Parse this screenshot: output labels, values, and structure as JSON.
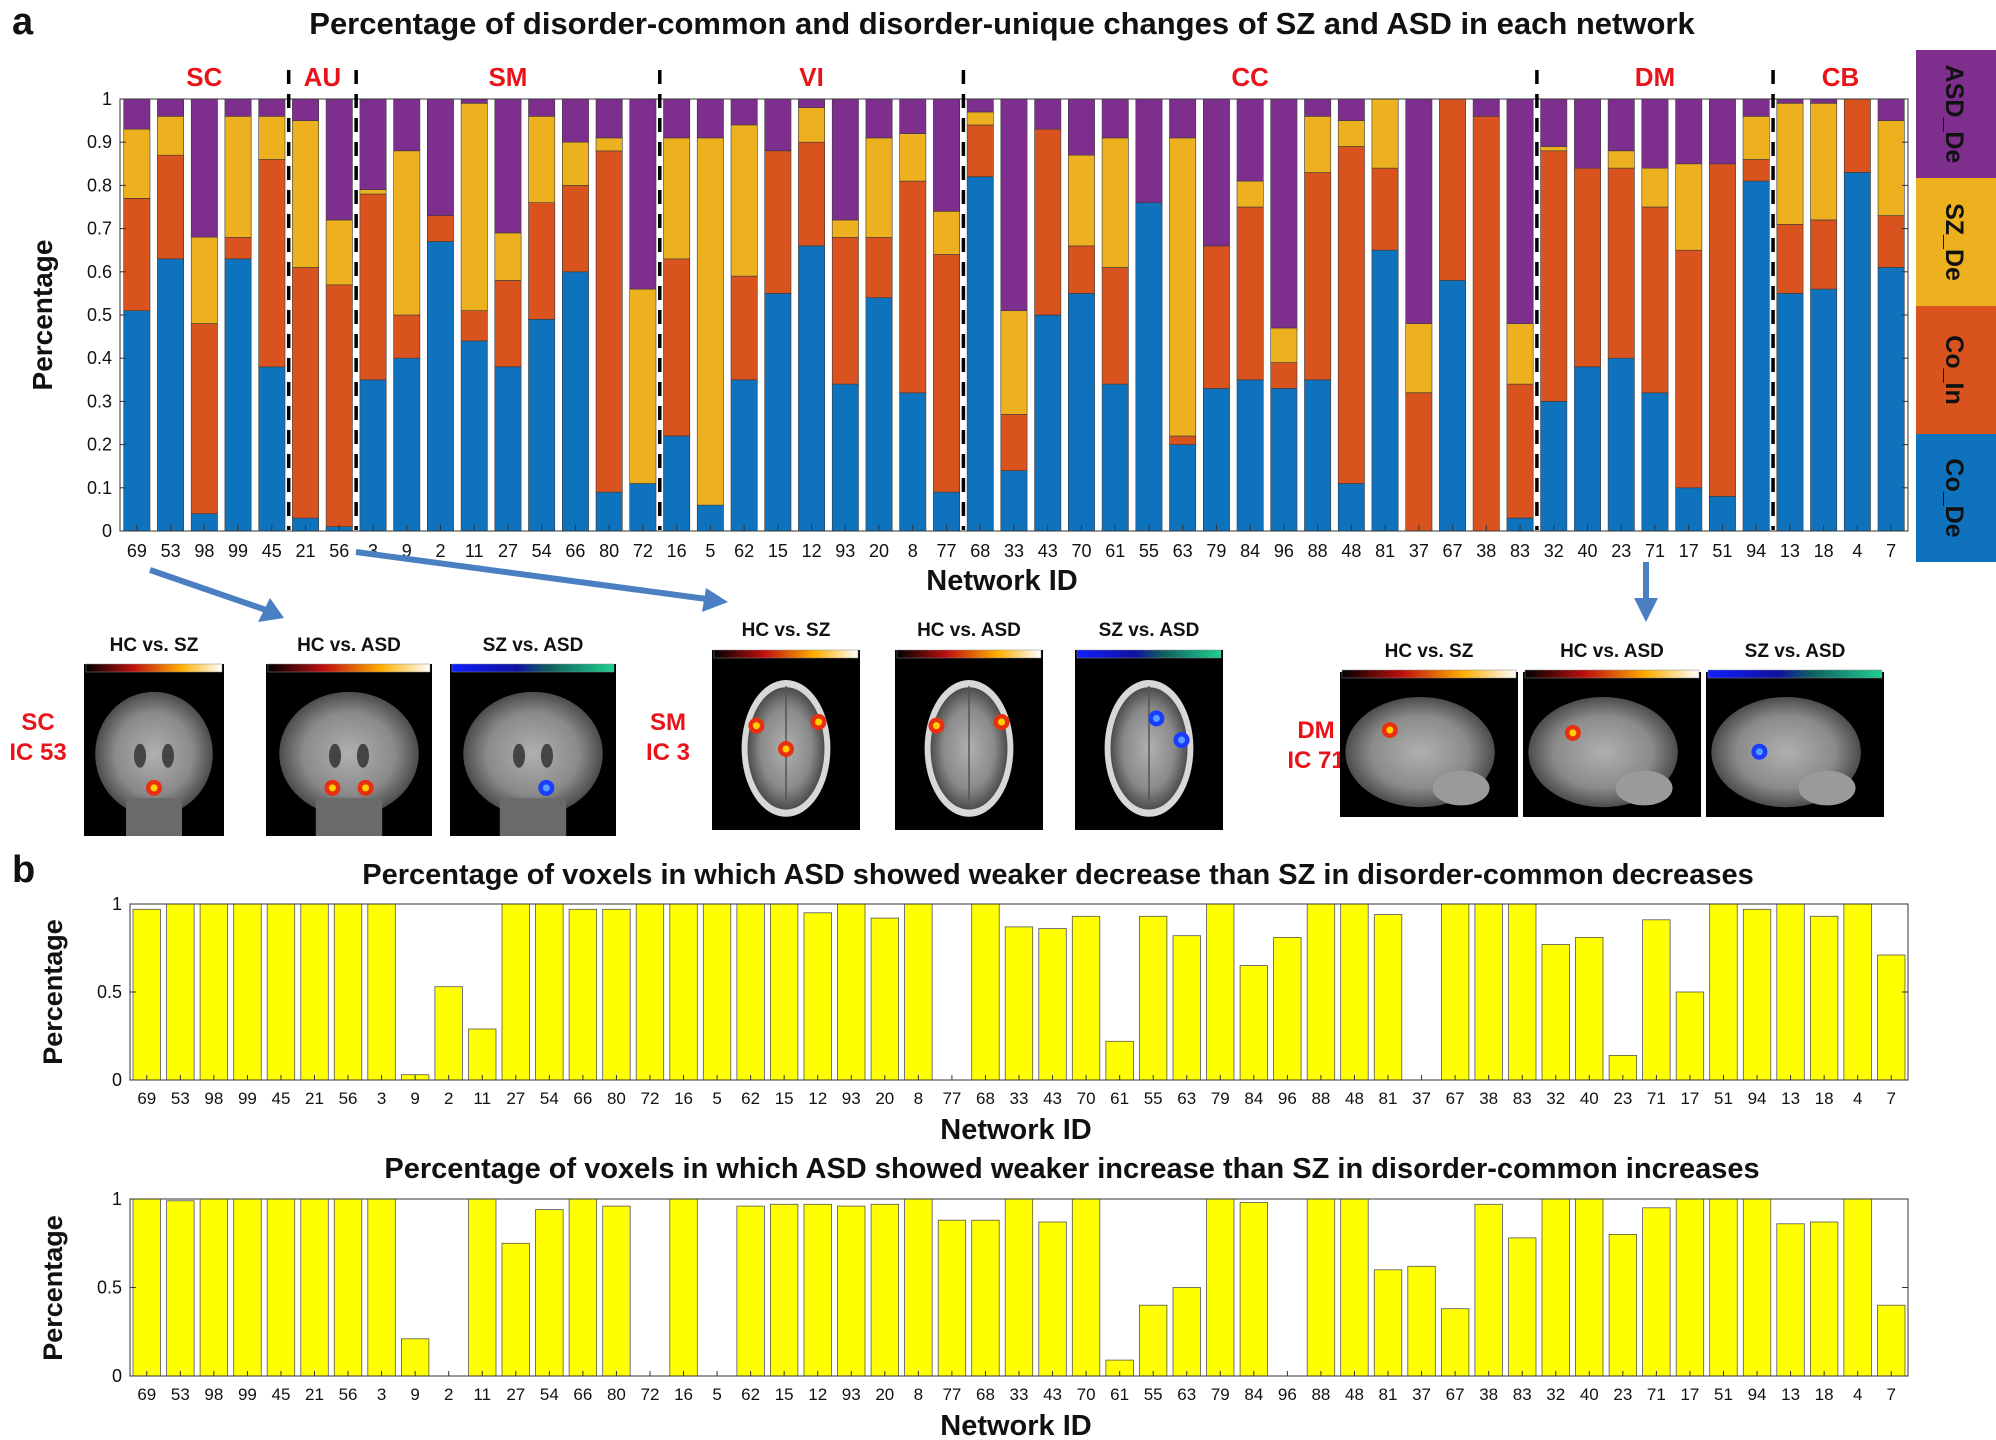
{
  "panel_labels": {
    "a": "a",
    "b": "b"
  },
  "colors": {
    "co_de": "#0f72bd",
    "co_in": "#d9531e",
    "sz_de": "#edb120",
    "asd_de": "#7e2f8e",
    "network_label": "#e8141a",
    "bar_b": "#ffff00",
    "arrow": "#4a7fc1"
  },
  "icons": {
    "arrow": "arrow-icon"
  },
  "chart_data": [
    {
      "id": "a",
      "type": "bar",
      "stacked": true,
      "title": "Percentage of disorder-common and disorder-unique changes of SZ and ASD in each network",
      "xlabel": "Network ID",
      "ylabel": "Percentage",
      "ylim": [
        0,
        1
      ],
      "yticks": [
        "0",
        "0.1",
        "0.2",
        "0.3",
        "0.4",
        "0.5",
        "0.6",
        "0.7",
        "0.8",
        "0.9",
        "1"
      ],
      "categories": [
        "69",
        "53",
        "98",
        "99",
        "45",
        "21",
        "56",
        "3",
        "9",
        "2",
        "11",
        "27",
        "54",
        "66",
        "80",
        "72",
        "16",
        "5",
        "62",
        "15",
        "12",
        "93",
        "20",
        "8",
        "77",
        "68",
        "33",
        "43",
        "70",
        "61",
        "55",
        "63",
        "79",
        "84",
        "96",
        "88",
        "48",
        "81",
        "37",
        "67",
        "38",
        "83",
        "32",
        "40",
        "23",
        "71",
        "17",
        "51",
        "94",
        "13",
        "18",
        "4",
        "7"
      ],
      "series": [
        {
          "name": "Co_De",
          "values": [
            0.51,
            0.63,
            0.04,
            0.63,
            0.38,
            0.03,
            0.01,
            0.35,
            0.4,
            0.67,
            0.44,
            0.38,
            0.49,
            0.6,
            0.09,
            0.11,
            0.22,
            0.06,
            0.35,
            0.55,
            0.66,
            0.34,
            0.54,
            0.32,
            0.09,
            0.82,
            0.14,
            0.5,
            0.55,
            0.34,
            0.76,
            0.2,
            0.33,
            0.35,
            0.33,
            0.35,
            0.11,
            0.65,
            0.0,
            0.58,
            0.0,
            0.03,
            0.3,
            0.38,
            0.4,
            0.32,
            0.1,
            0.08,
            0.81,
            0.55,
            0.56,
            0.83,
            0.61
          ]
        },
        {
          "name": "Co_In",
          "values": [
            0.26,
            0.24,
            0.44,
            0.05,
            0.48,
            0.58,
            0.56,
            0.43,
            0.1,
            0.06,
            0.07,
            0.2,
            0.27,
            0.2,
            0.79,
            0.0,
            0.41,
            0.0,
            0.24,
            0.33,
            0.24,
            0.34,
            0.14,
            0.49,
            0.55,
            0.12,
            0.13,
            0.43,
            0.11,
            0.27,
            0.0,
            0.02,
            0.33,
            0.4,
            0.06,
            0.48,
            0.78,
            0.19,
            0.32,
            0.42,
            0.96,
            0.31,
            0.58,
            0.46,
            0.44,
            0.43,
            0.55,
            0.77,
            0.05,
            0.16,
            0.16,
            0.17,
            0.12
          ]
        },
        {
          "name": "SZ_De",
          "values": [
            0.16,
            0.09,
            0.2,
            0.28,
            0.1,
            0.34,
            0.15,
            0.01,
            0.38,
            0.0,
            0.48,
            0.11,
            0.2,
            0.1,
            0.03,
            0.45,
            0.28,
            0.85,
            0.35,
            0.0,
            0.08,
            0.04,
            0.23,
            0.11,
            0.1,
            0.03,
            0.24,
            0.0,
            0.21,
            0.3,
            0.0,
            0.69,
            0.0,
            0.06,
            0.08,
            0.13,
            0.06,
            0.16,
            0.16,
            0.0,
            0.0,
            0.14,
            0.01,
            0.0,
            0.04,
            0.09,
            0.2,
            0.0,
            0.1,
            0.28,
            0.27,
            0.0,
            0.22
          ]
        },
        {
          "name": "ASD_De",
          "values": [
            0.07,
            0.04,
            0.32,
            0.04,
            0.04,
            0.05,
            0.28,
            0.21,
            0.12,
            0.27,
            0.01,
            0.31,
            0.04,
            0.1,
            0.09,
            0.44,
            0.09,
            0.09,
            0.06,
            0.12,
            0.02,
            0.28,
            0.09,
            0.08,
            0.26,
            0.03,
            0.49,
            0.07,
            0.13,
            0.09,
            0.24,
            0.09,
            0.34,
            0.19,
            0.53,
            0.04,
            0.05,
            0.0,
            0.52,
            0.0,
            0.04,
            0.52,
            0.11,
            0.16,
            0.12,
            0.16,
            0.15,
            0.15,
            0.04,
            0.01,
            0.01,
            0.0,
            0.05
          ]
        }
      ],
      "legend": [
        "ASD_De",
        "SZ_De",
        "Co_In",
        "Co_De"
      ],
      "legend_position": "right",
      "network_groups": [
        {
          "label": "SC",
          "start": 0,
          "count": 5
        },
        {
          "label": "AU",
          "start": 5,
          "count": 2
        },
        {
          "label": "SM",
          "start": 7,
          "count": 9
        },
        {
          "label": "VI",
          "start": 16,
          "count": 9
        },
        {
          "label": "CC",
          "start": 25,
          "count": 17
        },
        {
          "label": "DM",
          "start": 42,
          "count": 7
        },
        {
          "label": "CB",
          "start": 49,
          "count": 4
        }
      ]
    },
    {
      "id": "b1",
      "type": "bar",
      "title": "Percentage of voxels in which ASD showed weaker decrease than SZ in disorder-common decreases",
      "xlabel": "Network ID",
      "ylabel": "Percentage",
      "ylim": [
        0,
        1
      ],
      "yticks": [
        "0",
        "0.5",
        "1"
      ],
      "categories": [
        "69",
        "53",
        "98",
        "99",
        "45",
        "21",
        "56",
        "3",
        "9",
        "2",
        "11",
        "27",
        "54",
        "66",
        "80",
        "72",
        "16",
        "5",
        "62",
        "15",
        "12",
        "93",
        "20",
        "8",
        "77",
        "68",
        "33",
        "43",
        "70",
        "61",
        "55",
        "63",
        "79",
        "84",
        "96",
        "88",
        "48",
        "81",
        "37",
        "67",
        "38",
        "83",
        "32",
        "40",
        "23",
        "71",
        "17",
        "51",
        "94",
        "13",
        "18",
        "4",
        "7"
      ],
      "values": [
        0.97,
        1,
        1,
        1,
        1,
        1,
        1,
        1,
        0.03,
        0.53,
        0.29,
        1,
        1,
        0.97,
        0.97,
        1,
        1,
        1,
        1,
        1,
        0.95,
        1,
        0.92,
        1,
        0,
        1,
        0.87,
        0.86,
        0.93,
        0.22,
        0.93,
        0.82,
        1,
        0.65,
        0.81,
        1,
        1,
        0.94,
        0,
        1,
        1,
        1,
        0.77,
        0.81,
        0.14,
        0.91,
        0.5,
        1,
        0.97,
        1,
        0.93,
        1,
        0.71
      ]
    },
    {
      "id": "b2",
      "type": "bar",
      "title": "Percentage of voxels in which ASD showed weaker increase than SZ in disorder-common increases",
      "xlabel": "Network ID",
      "ylabel": "Percentage",
      "ylim": [
        0,
        1
      ],
      "yticks": [
        "0",
        "0.5",
        "1"
      ],
      "categories": [
        "69",
        "53",
        "98",
        "99",
        "45",
        "21",
        "56",
        "3",
        "9",
        "2",
        "11",
        "27",
        "54",
        "66",
        "80",
        "72",
        "16",
        "5",
        "62",
        "15",
        "12",
        "93",
        "20",
        "8",
        "77",
        "68",
        "33",
        "43",
        "70",
        "61",
        "55",
        "63",
        "79",
        "84",
        "96",
        "88",
        "48",
        "81",
        "37",
        "67",
        "38",
        "83",
        "32",
        "40",
        "23",
        "71",
        "17",
        "51",
        "94",
        "13",
        "18",
        "4",
        "7"
      ],
      "values": [
        1,
        0.99,
        1,
        1,
        1,
        1,
        1,
        1,
        0.21,
        0,
        1,
        0.75,
        0.94,
        1,
        0.96,
        0,
        1,
        0,
        0.96,
        0.97,
        0.97,
        0.96,
        0.97,
        1,
        0.88,
        0.88,
        1,
        0.87,
        1,
        0.09,
        0.4,
        0.5,
        1,
        0.98,
        0,
        1,
        1,
        0.6,
        0.62,
        0.38,
        0.97,
        0.78,
        1,
        1,
        0.8,
        0.95,
        1,
        1,
        1,
        0.86,
        0.87,
        1,
        0.4
      ]
    }
  ],
  "brain_figures": [
    {
      "network": "SC",
      "component": "IC 53",
      "view": "coronal",
      "panels": [
        "HC vs. SZ",
        "HC vs. ASD",
        "SZ vs. ASD"
      ]
    },
    {
      "network": "SM",
      "component": "IC 3",
      "view": "axial",
      "panels": [
        "HC vs. SZ",
        "HC vs. ASD",
        "SZ vs. ASD"
      ]
    },
    {
      "network": "DM",
      "component": "IC 71",
      "view": "sagittal",
      "panels": [
        "HC vs. SZ",
        "HC vs. ASD",
        "SZ vs. ASD"
      ]
    }
  ]
}
